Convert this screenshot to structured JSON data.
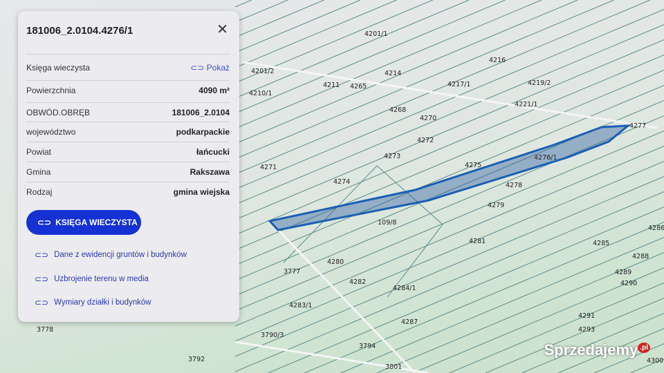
{
  "panel": {
    "title": "181006_2.0104.4276/1",
    "close_icon": "close-icon",
    "ksiega_label": "Księga wieczysta",
    "ksiega_link": "Pokaż",
    "rows": [
      {
        "label": "Powierzchnia",
        "value": "4090 m²"
      },
      {
        "label": "OBWÓD.OBRĘB",
        "value": "181006_2.0104"
      },
      {
        "label": "województwo",
        "value": "podkarpackie"
      },
      {
        "label": "Powiat",
        "value": "łańcucki"
      },
      {
        "label": "Gmina",
        "value": "Rakszawa"
      },
      {
        "label": "Rodzaj",
        "value": "gmina wiejska"
      }
    ],
    "button": "KSIĘGA WIECZYSTA",
    "links": [
      "Dane z ewidencji gruntów i budynków",
      "Uzbrojenie terenu w media",
      "Wymiary działki i budynków"
    ]
  },
  "map": {
    "parcel_color": "#1a5fb4",
    "labels": [
      "4201/1",
      "4216",
      "4201/2",
      "4214",
      "4211",
      "4265",
      "4217/1",
      "4219/2",
      "4210/1",
      "4268",
      "4221/1",
      "4270",
      "4277",
      "4272",
      "4276/1",
      "4273",
      "4275",
      "4271",
      "4274",
      "4278",
      "4279",
      "109/8",
      "4286",
      "4281",
      "4285",
      "4288",
      "4280",
      "3777",
      "4289",
      "4282",
      "4284/1",
      "4290",
      "4283/1",
      "4287",
      "4291",
      "4293",
      "3778",
      "3790/3",
      "3794",
      "3792",
      "3801",
      "4300"
    ]
  },
  "watermark": "Sprzedajemy.pl"
}
